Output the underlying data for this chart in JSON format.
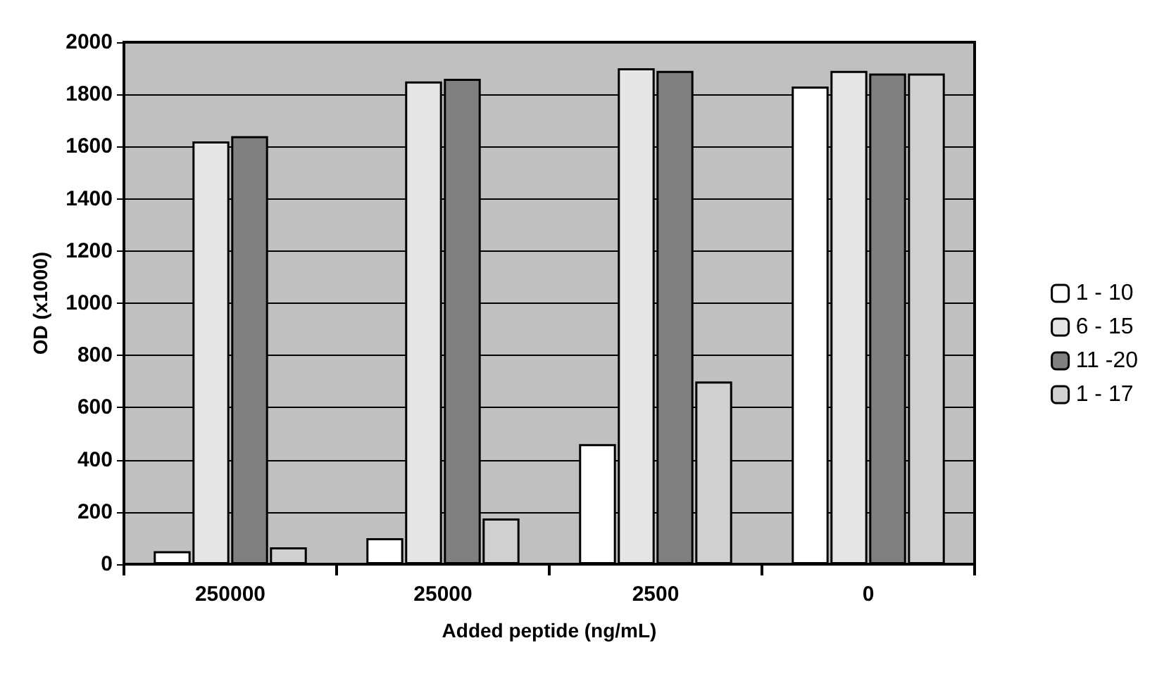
{
  "chart_data": {
    "type": "bar",
    "xlabel": "Added peptide (ng/mL)",
    "ylabel": "OD (x1000)",
    "categories": [
      "250000",
      "25000",
      "2500",
      "0"
    ],
    "series": [
      {
        "name": "1 - 10",
        "color": "#ffffff",
        "values": [
          50,
          100,
          460,
          1830
        ]
      },
      {
        "name": "6 - 15",
        "color": "#e6e6e6",
        "values": [
          1620,
          1850,
          1900,
          1890
        ]
      },
      {
        "name": "11 -20",
        "color": "#808080",
        "values": [
          1640,
          1860,
          1890,
          1880
        ]
      },
      {
        "name": "1 - 17",
        "color": "#d0d0d0",
        "values": [
          65,
          175,
          700,
          1880
        ]
      }
    ],
    "ylim": [
      0,
      2000
    ],
    "yticks": [
      0,
      200,
      400,
      600,
      800,
      1000,
      1200,
      1400,
      1600,
      1800,
      2000
    ],
    "grid": "y",
    "legend": "right"
  }
}
